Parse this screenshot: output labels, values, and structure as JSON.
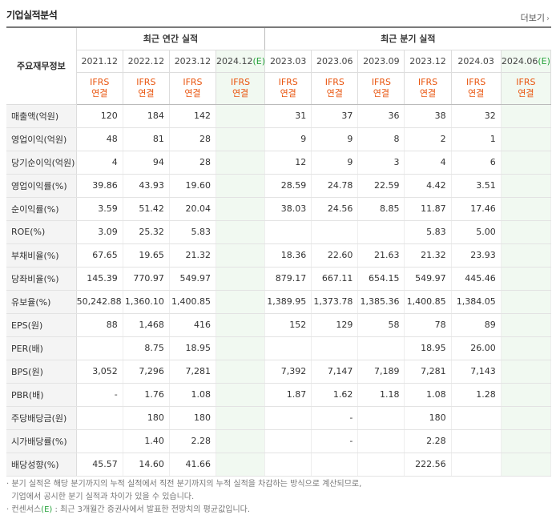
{
  "title": "기업실적분석",
  "more_label": "더보기",
  "more_arrow": "›",
  "corner_label": "주요재무정보",
  "groups": {
    "annual": "최근 연간 실적",
    "quarterly": "최근 분기 실적"
  },
  "periods": [
    {
      "label": "2021.12",
      "est": false
    },
    {
      "label": "2022.12",
      "est": false
    },
    {
      "label": "2023.12",
      "est": false
    },
    {
      "label": "2024.12",
      "est": true
    },
    {
      "label": "2023.03",
      "est": false
    },
    {
      "label": "2023.06",
      "est": false
    },
    {
      "label": "2023.09",
      "est": false
    },
    {
      "label": "2023.12",
      "est": false
    },
    {
      "label": "2024.03",
      "est": false
    },
    {
      "label": "2024.06",
      "est": true
    }
  ],
  "est_mark": "(E)",
  "ifrs": {
    "line1": "IFRS",
    "line2": "연결"
  },
  "rows": [
    {
      "label": "매출액(억원)",
      "values": [
        "120",
        "184",
        "142",
        "",
        "31",
        "37",
        "36",
        "38",
        "32",
        ""
      ]
    },
    {
      "label": "영업이익(억원)",
      "values": [
        "48",
        "81",
        "28",
        "",
        "9",
        "9",
        "8",
        "2",
        "1",
        ""
      ]
    },
    {
      "label": "당기순이익(억원)",
      "values": [
        "4",
        "94",
        "28",
        "",
        "12",
        "9",
        "3",
        "4",
        "6",
        ""
      ]
    },
    {
      "label": "영업이익률(%)",
      "values": [
        "39.86",
        "43.93",
        "19.60",
        "",
        "28.59",
        "24.78",
        "22.59",
        "4.42",
        "3.51",
        ""
      ]
    },
    {
      "label": "순이익률(%)",
      "values": [
        "3.59",
        "51.42",
        "20.04",
        "",
        "38.03",
        "24.56",
        "8.85",
        "11.87",
        "17.46",
        ""
      ]
    },
    {
      "label": "ROE(%)",
      "values": [
        "3.09",
        "25.32",
        "5.83",
        "",
        "",
        "",
        "",
        "5.83",
        "5.00",
        ""
      ]
    },
    {
      "label": "부채비율(%)",
      "values": [
        "67.65",
        "19.65",
        "21.32",
        "",
        "18.36",
        "22.60",
        "21.63",
        "21.32",
        "23.93",
        ""
      ]
    },
    {
      "label": "당좌비율(%)",
      "values": [
        "145.39",
        "770.97",
        "549.97",
        "",
        "879.17",
        "667.11",
        "654.15",
        "549.97",
        "445.46",
        ""
      ]
    },
    {
      "label": "유보율(%)",
      "values": [
        "50,242.88",
        "1,360.10",
        "1,400.85",
        "",
        "1,389.95",
        "1,373.78",
        "1,385.36",
        "1,400.85",
        "1,384.05",
        ""
      ]
    },
    {
      "label": "EPS(원)",
      "values": [
        "88",
        "1,468",
        "416",
        "",
        "152",
        "129",
        "58",
        "78",
        "89",
        ""
      ]
    },
    {
      "label": "PER(배)",
      "values": [
        "",
        "8.75",
        "18.95",
        "",
        "",
        "",
        "",
        "18.95",
        "26.00",
        ""
      ]
    },
    {
      "label": "BPS(원)",
      "values": [
        "3,052",
        "7,296",
        "7,281",
        "",
        "7,392",
        "7,147",
        "7,189",
        "7,281",
        "7,143",
        ""
      ]
    },
    {
      "label": "PBR(배)",
      "values": [
        "-",
        "1.76",
        "1.08",
        "",
        "1.87",
        "1.62",
        "1.18",
        "1.08",
        "1.28",
        ""
      ]
    },
    {
      "label": "주당배당금(원)",
      "values": [
        "",
        "180",
        "180",
        "",
        "",
        "-",
        "",
        "180",
        "",
        ""
      ]
    },
    {
      "label": "시가배당률(%)",
      "values": [
        "",
        "1.40",
        "2.28",
        "",
        "",
        "-",
        "",
        "2.28",
        "",
        ""
      ]
    },
    {
      "label": "배당성향(%)",
      "values": [
        "45.57",
        "14.60",
        "41.66",
        "",
        "",
        "",
        "",
        "222.56",
        "",
        ""
      ]
    }
  ],
  "notes": {
    "line1": "· 분기 실적은 해당 분기까지의 누적 실적에서 직전 분기까지의 누적 실적을 차감하는 방식으로 계산되므로,",
    "line2": "  기업에서 공시한 분기 실적과 차이가 있을 수 있습니다.",
    "line3_pre": "· 컨센서스",
    "line3_mark": "(E)",
    "line3_post": " : 최근 3개월간 증권사에서 발표한 전망치의 평균값입니다."
  }
}
